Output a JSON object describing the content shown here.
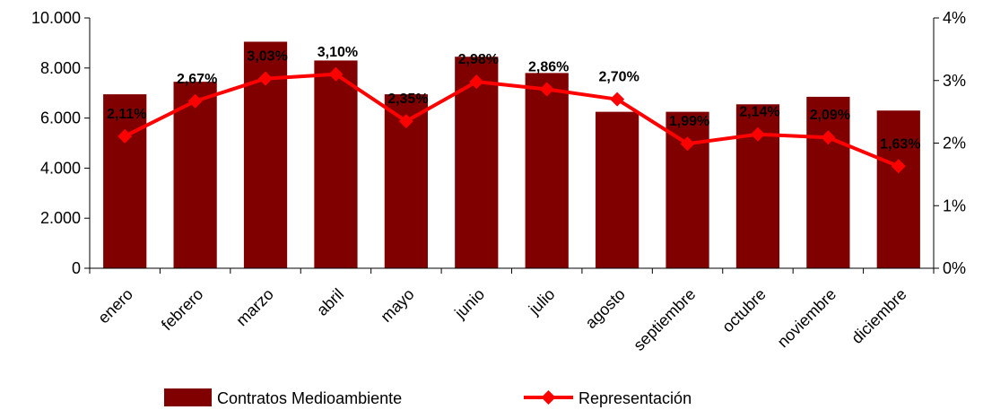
{
  "chart_data": {
    "type": "bar",
    "categories": [
      "enero",
      "febrero",
      "marzo",
      "abril",
      "mayo",
      "junio",
      "julio",
      "agosto",
      "septiembre",
      "octubre",
      "noviembre",
      "diciembre"
    ],
    "series": [
      {
        "name": "Contratos Medioambiente",
        "type": "bar",
        "axis": "left",
        "color": "#800000",
        "values": [
          6950,
          7450,
          9050,
          8300,
          6950,
          8450,
          7800,
          6250,
          6250,
          6550,
          6850,
          6300
        ]
      },
      {
        "name": "Representación",
        "type": "line",
        "axis": "right",
        "color": "#ff0000",
        "marker": "diamond",
        "values": [
          2.11,
          2.67,
          3.03,
          3.1,
          2.35,
          2.98,
          2.86,
          2.7,
          1.99,
          2.14,
          2.09,
          1.63
        ],
        "labels": [
          "2,11%",
          "2,67%",
          "3,03%",
          "3,10%",
          "2,35%",
          "2,98%",
          "2,86%",
          "2,70%",
          "1,99%",
          "2,14%",
          "2,09%",
          "1,63%"
        ]
      }
    ],
    "y_left": {
      "ylim": [
        0,
        10000
      ],
      "ticks": [
        0,
        2000,
        4000,
        6000,
        8000,
        10000
      ],
      "tick_labels": [
        "0",
        "2.000",
        "4.000",
        "6.000",
        "8.000",
        "10.000"
      ]
    },
    "y_right": {
      "ylim": [
        0,
        4
      ],
      "ticks": [
        0,
        1,
        2,
        3,
        4
      ],
      "tick_labels": [
        "0%",
        "1%",
        "2%",
        "3%",
        "4%"
      ]
    },
    "grid": false,
    "legend": "bottom"
  }
}
